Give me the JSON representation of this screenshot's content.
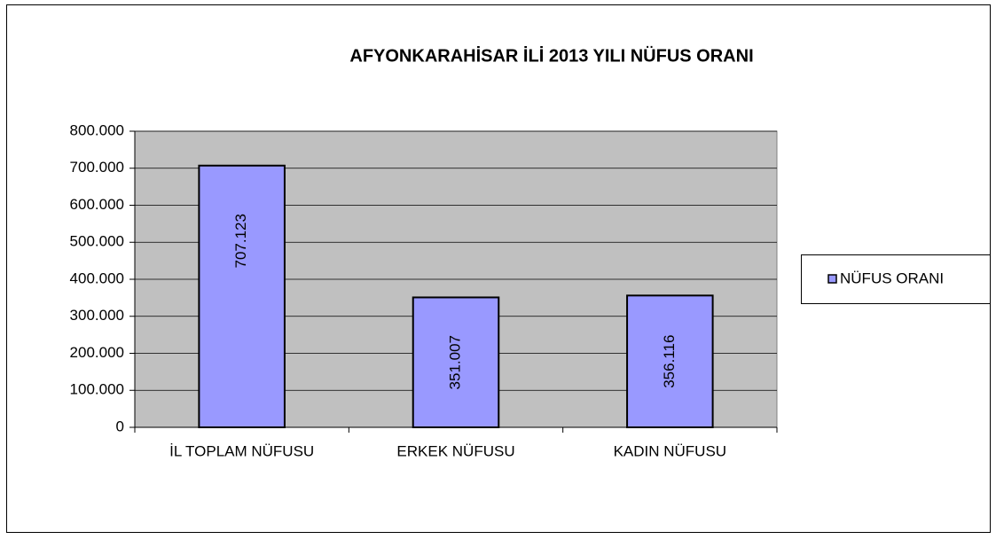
{
  "chart_data": {
    "type": "bar",
    "title": "AFYONKARAHİSAR İLİ 2013 YILI NÜFUS ORANI",
    "categories": [
      "İL TOPLAM NÜFUSU",
      "ERKEK NÜFUSU",
      "KADIN NÜFUSU"
    ],
    "series": [
      {
        "name": "NÜFUS ORANI",
        "color": "#9999ff",
        "values": [
          707123,
          351007,
          356116
        ],
        "value_labels": [
          "707.123",
          "351.007",
          "356.116"
        ]
      }
    ],
    "ylim": [
      0,
      800000
    ],
    "yticks": [
      0,
      {
        "value": 100000,
        "label": "100.000"
      },
      {
        "value": 200000,
        "label": "200.000"
      },
      {
        "value": 300000,
        "label": "300.000"
      },
      {
        "value": 400000,
        "label": "400.000"
      },
      {
        "value": 500000,
        "label": "500.000"
      },
      {
        "value": 600000,
        "label": "600.000"
      },
      {
        "value": 700000,
        "label": "700.000"
      },
      {
        "value": 800000,
        "label": "800.000"
      }
    ],
    "grid": true,
    "legend": "right"
  }
}
